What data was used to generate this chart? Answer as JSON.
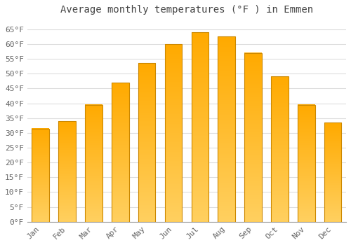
{
  "title": "Average monthly temperatures (°F ) in Emmen",
  "months": [
    "Jan",
    "Feb",
    "Mar",
    "Apr",
    "May",
    "Jun",
    "Jul",
    "Aug",
    "Sep",
    "Oct",
    "Nov",
    "Dec"
  ],
  "values": [
    31.5,
    34.0,
    39.5,
    47.0,
    53.5,
    60.0,
    64.0,
    62.5,
    57.0,
    49.0,
    39.5,
    33.5
  ],
  "bar_color": "#FFA500",
  "bar_edge_color": "#CC8800",
  "yticks": [
    0,
    5,
    10,
    15,
    20,
    25,
    30,
    35,
    40,
    45,
    50,
    55,
    60,
    65
  ],
  "ylim": [
    0,
    68
  ],
  "background_color": "#FFFFFF",
  "grid_color": "#DDDDDD",
  "title_fontsize": 10,
  "tick_fontsize": 8
}
